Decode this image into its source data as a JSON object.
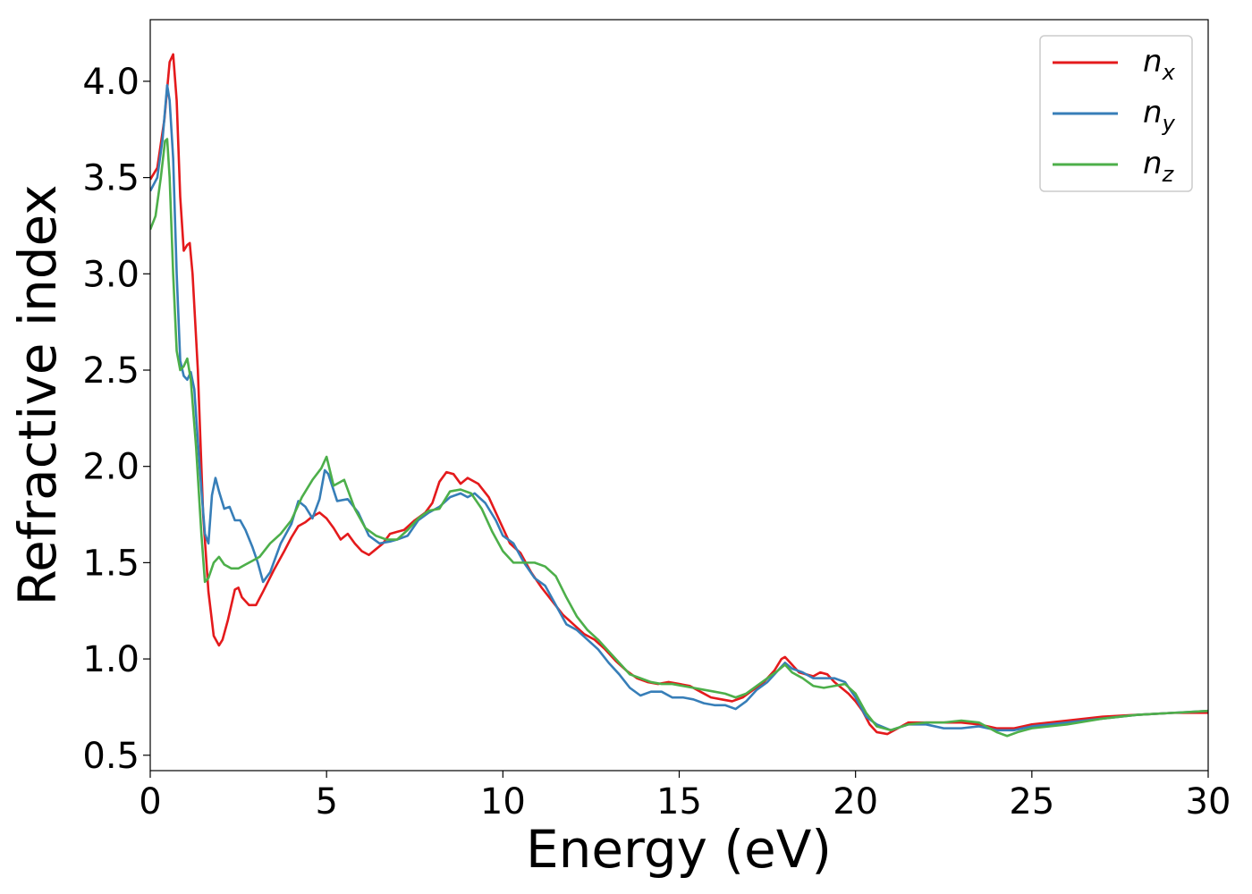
{
  "chart_data": {
    "type": "line",
    "title": "",
    "xlabel": "Energy (eV)",
    "ylabel": "Refractive index",
    "xlim": [
      0,
      30
    ],
    "ylim": [
      0.42,
      4.32
    ],
    "xticks": [
      0,
      5,
      10,
      15,
      20,
      25,
      30
    ],
    "xtick_labels": [
      "0",
      "5",
      "10",
      "15",
      "20",
      "25",
      "30"
    ],
    "yticks": [
      0.5,
      1.0,
      1.5,
      2.0,
      2.5,
      3.0,
      3.5,
      4.0
    ],
    "ytick_labels": [
      "0.5",
      "1.0",
      "1.5",
      "2.0",
      "2.5",
      "3.0",
      "3.5",
      "4.0"
    ],
    "grid": false,
    "legend_position": "top-right",
    "series": [
      {
        "name": "n",
        "subscript": "x",
        "color": "#e41a1c",
        "points": [
          [
            0,
            3.49
          ],
          [
            0.2,
            3.55
          ],
          [
            0.4,
            3.8
          ],
          [
            0.55,
            4.1
          ],
          [
            0.65,
            4.14
          ],
          [
            0.75,
            3.9
          ],
          [
            0.85,
            3.4
          ],
          [
            0.95,
            3.12
          ],
          [
            1.05,
            3.15
          ],
          [
            1.12,
            3.16
          ],
          [
            1.2,
            3.0
          ],
          [
            1.35,
            2.5
          ],
          [
            1.5,
            1.75
          ],
          [
            1.65,
            1.35
          ],
          [
            1.8,
            1.12
          ],
          [
            1.95,
            1.07
          ],
          [
            2.05,
            1.1
          ],
          [
            2.2,
            1.2
          ],
          [
            2.4,
            1.36
          ],
          [
            2.5,
            1.37
          ],
          [
            2.6,
            1.32
          ],
          [
            2.8,
            1.28
          ],
          [
            3.0,
            1.28
          ],
          [
            3.2,
            1.35
          ],
          [
            3.5,
            1.46
          ],
          [
            3.8,
            1.56
          ],
          [
            4.0,
            1.63
          ],
          [
            4.2,
            1.69
          ],
          [
            4.4,
            1.71
          ],
          [
            4.6,
            1.74
          ],
          [
            4.8,
            1.76
          ],
          [
            5.0,
            1.73
          ],
          [
            5.2,
            1.68
          ],
          [
            5.4,
            1.62
          ],
          [
            5.6,
            1.65
          ],
          [
            5.8,
            1.6
          ],
          [
            6.0,
            1.56
          ],
          [
            6.2,
            1.54
          ],
          [
            6.4,
            1.57
          ],
          [
            6.6,
            1.6
          ],
          [
            6.8,
            1.65
          ],
          [
            7.0,
            1.66
          ],
          [
            7.2,
            1.67
          ],
          [
            7.5,
            1.72
          ],
          [
            7.8,
            1.76
          ],
          [
            8.0,
            1.81
          ],
          [
            8.2,
            1.92
          ],
          [
            8.4,
            1.97
          ],
          [
            8.6,
            1.96
          ],
          [
            8.8,
            1.91
          ],
          [
            9.0,
            1.94
          ],
          [
            9.3,
            1.91
          ],
          [
            9.6,
            1.84
          ],
          [
            9.9,
            1.72
          ],
          [
            10.2,
            1.6
          ],
          [
            10.5,
            1.55
          ],
          [
            10.8,
            1.45
          ],
          [
            11.1,
            1.37
          ],
          [
            11.4,
            1.3
          ],
          [
            11.7,
            1.23
          ],
          [
            12.0,
            1.18
          ],
          [
            12.3,
            1.13
          ],
          [
            12.6,
            1.1
          ],
          [
            12.9,
            1.05
          ],
          [
            13.2,
            0.99
          ],
          [
            13.5,
            0.94
          ],
          [
            13.8,
            0.9
          ],
          [
            14.1,
            0.88
          ],
          [
            14.4,
            0.87
          ],
          [
            14.7,
            0.88
          ],
          [
            15.0,
            0.87
          ],
          [
            15.3,
            0.86
          ],
          [
            15.6,
            0.83
          ],
          [
            15.9,
            0.8
          ],
          [
            16.2,
            0.79
          ],
          [
            16.5,
            0.78
          ],
          [
            16.8,
            0.8
          ],
          [
            17.1,
            0.84
          ],
          [
            17.4,
            0.88
          ],
          [
            17.7,
            0.94
          ],
          [
            17.9,
            1.0
          ],
          [
            18.0,
            1.01
          ],
          [
            18.2,
            0.97
          ],
          [
            18.4,
            0.93
          ],
          [
            18.6,
            0.92
          ],
          [
            18.8,
            0.91
          ],
          [
            19.0,
            0.93
          ],
          [
            19.2,
            0.92
          ],
          [
            19.4,
            0.88
          ],
          [
            19.6,
            0.85
          ],
          [
            19.8,
            0.82
          ],
          [
            20.0,
            0.78
          ],
          [
            20.2,
            0.73
          ],
          [
            20.4,
            0.66
          ],
          [
            20.6,
            0.62
          ],
          [
            20.9,
            0.61
          ],
          [
            21.2,
            0.64
          ],
          [
            21.5,
            0.67
          ],
          [
            22.0,
            0.67
          ],
          [
            22.5,
            0.67
          ],
          [
            23.0,
            0.67
          ],
          [
            23.5,
            0.66
          ],
          [
            24.0,
            0.64
          ],
          [
            24.5,
            0.64
          ],
          [
            25.0,
            0.66
          ],
          [
            26.0,
            0.68
          ],
          [
            27.0,
            0.7
          ],
          [
            28.0,
            0.71
          ],
          [
            29.0,
            0.72
          ],
          [
            30.0,
            0.72
          ]
        ]
      },
      {
        "name": "n",
        "subscript": "y",
        "color": "#377eb8",
        "points": [
          [
            0,
            3.43
          ],
          [
            0.2,
            3.5
          ],
          [
            0.35,
            3.7
          ],
          [
            0.48,
            3.98
          ],
          [
            0.55,
            3.9
          ],
          [
            0.65,
            3.6
          ],
          [
            0.75,
            3.0
          ],
          [
            0.85,
            2.55
          ],
          [
            0.95,
            2.47
          ],
          [
            1.05,
            2.45
          ],
          [
            1.15,
            2.49
          ],
          [
            1.25,
            2.4
          ],
          [
            1.4,
            2.0
          ],
          [
            1.55,
            1.65
          ],
          [
            1.65,
            1.6
          ],
          [
            1.75,
            1.85
          ],
          [
            1.85,
            1.94
          ],
          [
            1.95,
            1.87
          ],
          [
            2.1,
            1.78
          ],
          [
            2.25,
            1.79
          ],
          [
            2.4,
            1.72
          ],
          [
            2.55,
            1.72
          ],
          [
            2.7,
            1.67
          ],
          [
            2.9,
            1.58
          ],
          [
            3.05,
            1.5
          ],
          [
            3.2,
            1.4
          ],
          [
            3.4,
            1.45
          ],
          [
            3.7,
            1.6
          ],
          [
            4.0,
            1.7
          ],
          [
            4.2,
            1.82
          ],
          [
            4.4,
            1.79
          ],
          [
            4.6,
            1.73
          ],
          [
            4.8,
            1.83
          ],
          [
            4.95,
            1.98
          ],
          [
            5.05,
            1.96
          ],
          [
            5.3,
            1.82
          ],
          [
            5.6,
            1.83
          ],
          [
            5.9,
            1.76
          ],
          [
            6.2,
            1.64
          ],
          [
            6.5,
            1.6
          ],
          [
            6.8,
            1.61
          ],
          [
            7.0,
            1.62
          ],
          [
            7.3,
            1.64
          ],
          [
            7.6,
            1.72
          ],
          [
            7.9,
            1.76
          ],
          [
            8.2,
            1.79
          ],
          [
            8.5,
            1.84
          ],
          [
            8.8,
            1.86
          ],
          [
            9.0,
            1.84
          ],
          [
            9.2,
            1.86
          ],
          [
            9.5,
            1.81
          ],
          [
            9.8,
            1.72
          ],
          [
            10.0,
            1.64
          ],
          [
            10.3,
            1.6
          ],
          [
            10.6,
            1.5
          ],
          [
            10.9,
            1.42
          ],
          [
            11.2,
            1.38
          ],
          [
            11.5,
            1.28
          ],
          [
            11.8,
            1.18
          ],
          [
            12.1,
            1.15
          ],
          [
            12.4,
            1.1
          ],
          [
            12.7,
            1.05
          ],
          [
            13.0,
            0.98
          ],
          [
            13.3,
            0.92
          ],
          [
            13.6,
            0.85
          ],
          [
            13.9,
            0.81
          ],
          [
            14.2,
            0.83
          ],
          [
            14.5,
            0.83
          ],
          [
            14.8,
            0.8
          ],
          [
            15.1,
            0.8
          ],
          [
            15.4,
            0.79
          ],
          [
            15.7,
            0.77
          ],
          [
            16.0,
            0.76
          ],
          [
            16.3,
            0.76
          ],
          [
            16.6,
            0.74
          ],
          [
            16.9,
            0.78
          ],
          [
            17.2,
            0.84
          ],
          [
            17.5,
            0.88
          ],
          [
            17.8,
            0.94
          ],
          [
            18.0,
            0.98
          ],
          [
            18.2,
            0.95
          ],
          [
            18.5,
            0.93
          ],
          [
            18.8,
            0.9
          ],
          [
            19.1,
            0.9
          ],
          [
            19.4,
            0.9
          ],
          [
            19.7,
            0.88
          ],
          [
            20.0,
            0.8
          ],
          [
            20.3,
            0.7
          ],
          [
            20.6,
            0.66
          ],
          [
            21.0,
            0.63
          ],
          [
            21.5,
            0.66
          ],
          [
            22.0,
            0.66
          ],
          [
            22.5,
            0.64
          ],
          [
            23.0,
            0.64
          ],
          [
            23.5,
            0.65
          ],
          [
            24.0,
            0.63
          ],
          [
            24.5,
            0.63
          ],
          [
            25.0,
            0.65
          ],
          [
            26.0,
            0.67
          ],
          [
            27.0,
            0.69
          ],
          [
            28.0,
            0.71
          ],
          [
            29.0,
            0.72
          ],
          [
            30.0,
            0.73
          ]
        ]
      },
      {
        "name": "n",
        "subscript": "z",
        "color": "#4daf4a",
        "points": [
          [
            0,
            3.23
          ],
          [
            0.15,
            3.3
          ],
          [
            0.3,
            3.5
          ],
          [
            0.42,
            3.69
          ],
          [
            0.48,
            3.7
          ],
          [
            0.55,
            3.5
          ],
          [
            0.65,
            3.0
          ],
          [
            0.75,
            2.6
          ],
          [
            0.85,
            2.5
          ],
          [
            0.95,
            2.52
          ],
          [
            1.05,
            2.56
          ],
          [
            1.15,
            2.45
          ],
          [
            1.3,
            2.1
          ],
          [
            1.45,
            1.65
          ],
          [
            1.55,
            1.4
          ],
          [
            1.65,
            1.42
          ],
          [
            1.8,
            1.5
          ],
          [
            1.95,
            1.53
          ],
          [
            2.1,
            1.49
          ],
          [
            2.3,
            1.47
          ],
          [
            2.5,
            1.47
          ],
          [
            2.7,
            1.49
          ],
          [
            2.9,
            1.51
          ],
          [
            3.1,
            1.53
          ],
          [
            3.4,
            1.6
          ],
          [
            3.7,
            1.65
          ],
          [
            4.0,
            1.72
          ],
          [
            4.3,
            1.84
          ],
          [
            4.6,
            1.93
          ],
          [
            4.85,
            1.99
          ],
          [
            5.0,
            2.05
          ],
          [
            5.2,
            1.9
          ],
          [
            5.5,
            1.93
          ],
          [
            5.8,
            1.78
          ],
          [
            6.1,
            1.68
          ],
          [
            6.4,
            1.64
          ],
          [
            6.7,
            1.62
          ],
          [
            7.0,
            1.62
          ],
          [
            7.3,
            1.67
          ],
          [
            7.6,
            1.73
          ],
          [
            7.9,
            1.77
          ],
          [
            8.2,
            1.78
          ],
          [
            8.5,
            1.87
          ],
          [
            8.8,
            1.88
          ],
          [
            9.1,
            1.86
          ],
          [
            9.4,
            1.78
          ],
          [
            9.7,
            1.66
          ],
          [
            10.0,
            1.56
          ],
          [
            10.3,
            1.5
          ],
          [
            10.6,
            1.5
          ],
          [
            10.9,
            1.5
          ],
          [
            11.2,
            1.48
          ],
          [
            11.5,
            1.43
          ],
          [
            11.8,
            1.32
          ],
          [
            12.1,
            1.22
          ],
          [
            12.4,
            1.15
          ],
          [
            12.7,
            1.1
          ],
          [
            13.0,
            1.04
          ],
          [
            13.3,
            0.98
          ],
          [
            13.6,
            0.92
          ],
          [
            13.9,
            0.9
          ],
          [
            14.2,
            0.88
          ],
          [
            14.5,
            0.87
          ],
          [
            14.8,
            0.87
          ],
          [
            15.1,
            0.86
          ],
          [
            15.4,
            0.85
          ],
          [
            15.7,
            0.84
          ],
          [
            16.0,
            0.83
          ],
          [
            16.3,
            0.82
          ],
          [
            16.6,
            0.8
          ],
          [
            16.9,
            0.82
          ],
          [
            17.2,
            0.86
          ],
          [
            17.5,
            0.9
          ],
          [
            17.8,
            0.94
          ],
          [
            18.0,
            0.97
          ],
          [
            18.2,
            0.93
          ],
          [
            18.5,
            0.9
          ],
          [
            18.8,
            0.86
          ],
          [
            19.1,
            0.85
          ],
          [
            19.4,
            0.86
          ],
          [
            19.7,
            0.87
          ],
          [
            20.0,
            0.82
          ],
          [
            20.3,
            0.72
          ],
          [
            20.6,
            0.65
          ],
          [
            21.0,
            0.63
          ],
          [
            21.5,
            0.66
          ],
          [
            22.0,
            0.67
          ],
          [
            22.5,
            0.67
          ],
          [
            23.0,
            0.68
          ],
          [
            23.5,
            0.67
          ],
          [
            24.0,
            0.62
          ],
          [
            24.3,
            0.6
          ],
          [
            24.6,
            0.62
          ],
          [
            25.0,
            0.64
          ],
          [
            26.0,
            0.66
          ],
          [
            27.0,
            0.69
          ],
          [
            28.0,
            0.71
          ],
          [
            29.0,
            0.72
          ],
          [
            30.0,
            0.73
          ]
        ]
      }
    ]
  }
}
